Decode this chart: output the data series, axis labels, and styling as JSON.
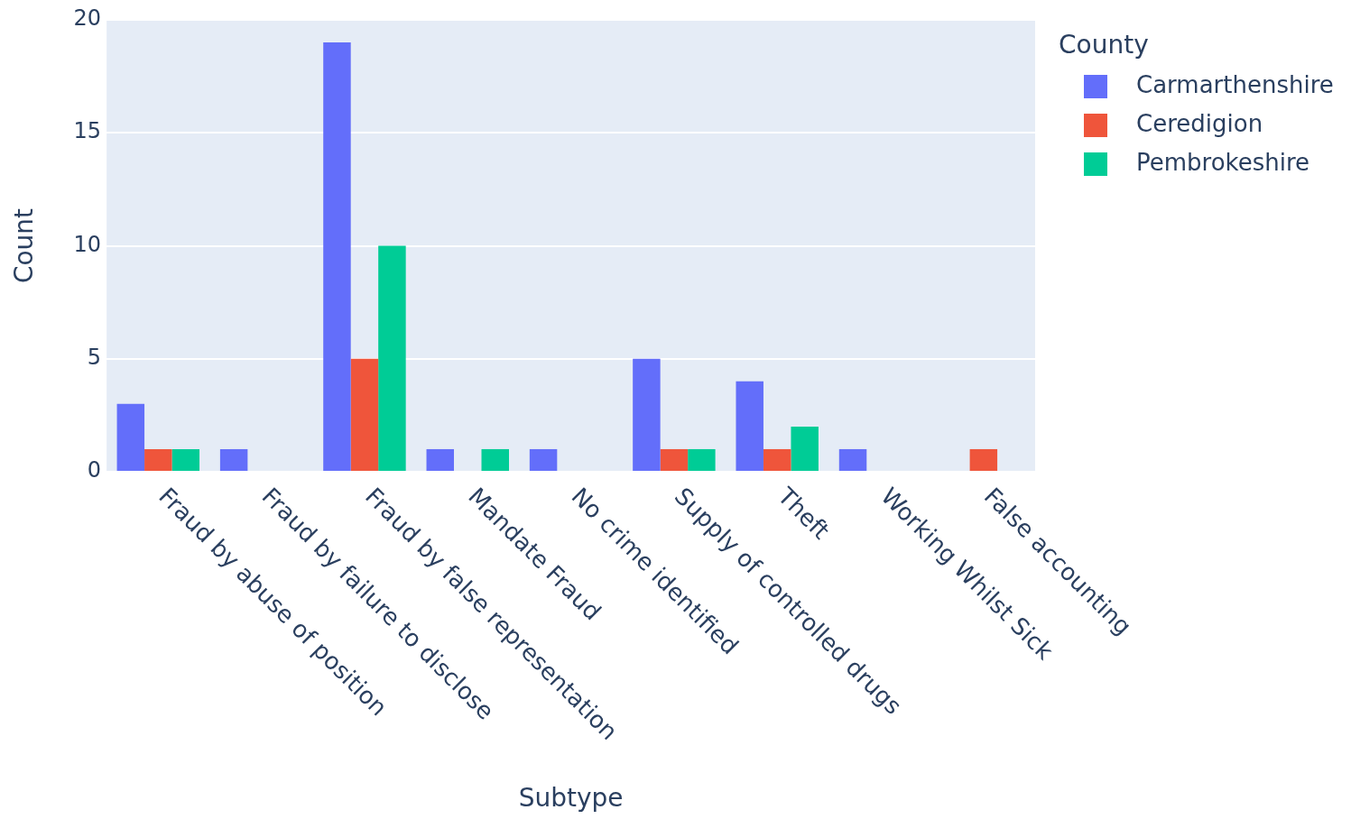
{
  "chart_data": {
    "type": "bar",
    "xlabel": "Subtype",
    "ylabel": "Count",
    "legend_title": "County",
    "legend": "top right",
    "grid": "y",
    "categories": [
      "Fraud by abuse of position",
      "Fraud by failure to disclose",
      "Fraud by false representation",
      "Mandate Fraud",
      "No crime identified",
      "Supply of controlled drugs",
      "Theft",
      "Working Whilst Sick",
      "False accounting"
    ],
    "ylim": [
      0,
      20
    ],
    "yticks": [
      0,
      5,
      10,
      15,
      20
    ],
    "series": [
      {
        "name": "Carmarthenshire",
        "color": "#636efa",
        "values": [
          3,
          1,
          19,
          1,
          1,
          5,
          4,
          1,
          null
        ]
      },
      {
        "name": "Ceredigion",
        "color": "#ef553b",
        "values": [
          1,
          null,
          5,
          null,
          null,
          1,
          1,
          null,
          1
        ]
      },
      {
        "name": "Pembrokeshire",
        "color": "#00cc96",
        "values": [
          1,
          null,
          10,
          1,
          null,
          1,
          2,
          null,
          null
        ]
      }
    ]
  }
}
